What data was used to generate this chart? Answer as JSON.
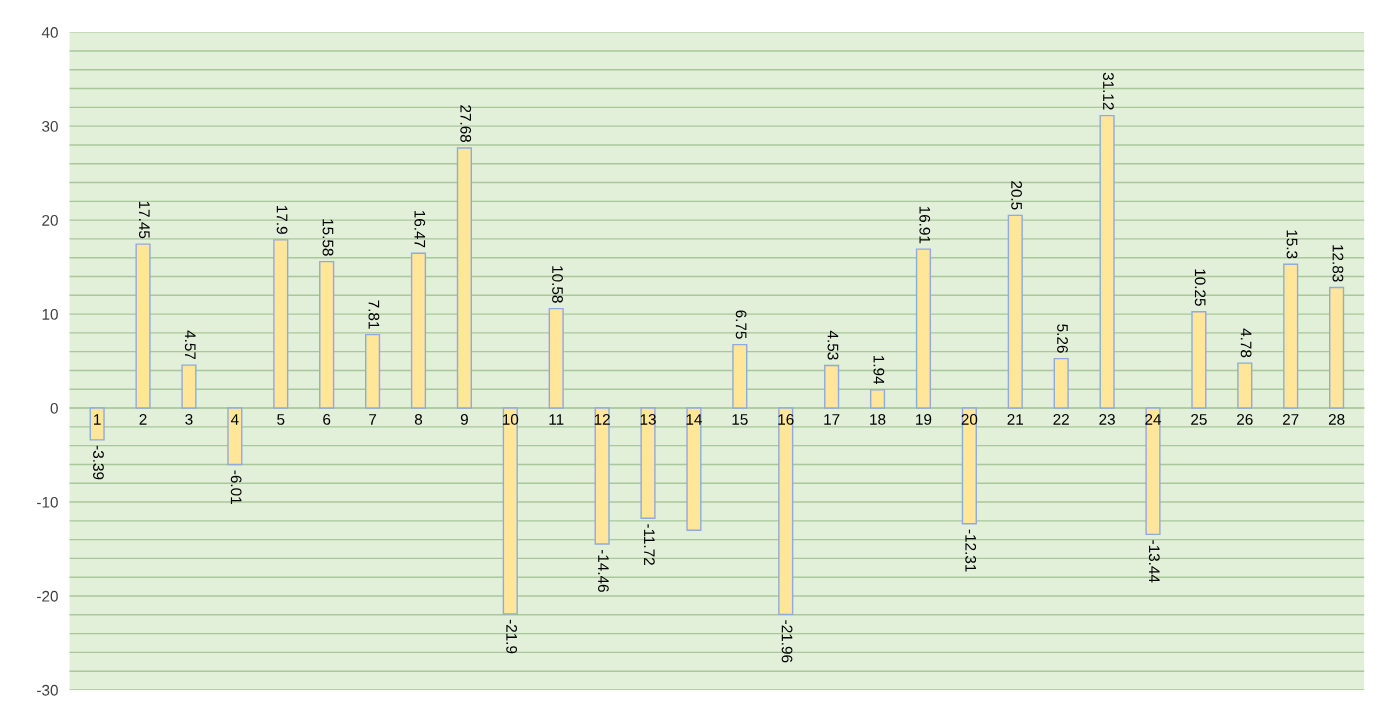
{
  "chart_data": {
    "type": "bar",
    "categories": [
      "1",
      "2",
      "3",
      "4",
      "5",
      "6",
      "7",
      "8",
      "9",
      "10",
      "11",
      "12",
      "13",
      "14",
      "15",
      "16",
      "17",
      "18",
      "19",
      "20",
      "21",
      "22",
      "23",
      "24",
      "25",
      "26",
      "27",
      "28"
    ],
    "values": [
      -3.39,
      17.45,
      4.57,
      -6.01,
      17.9,
      15.58,
      7.81,
      16.47,
      27.68,
      -21.9,
      10.58,
      -14.46,
      -11.72,
      -13.0,
      6.75,
      -21.96,
      4.53,
      1.94,
      16.91,
      -12.31,
      20.5,
      5.26,
      31.12,
      -13.44,
      10.25,
      4.78,
      15.3,
      12.83
    ],
    "value_labels": [
      "-3.39",
      "17.45",
      "4.57",
      "-6.01",
      "17.9",
      "15.58",
      "7.81",
      "16.47",
      "27.68",
      "-21.9",
      "10.58",
      "-14.46",
      "-11.72",
      null,
      "6.75",
      "-21.96",
      "4.53",
      "1.94",
      "16.91",
      "-12.31",
      "20.5",
      "5.26",
      "31.12",
      "-13.44",
      "10.25",
      "4.78",
      "15.3",
      "12.83"
    ],
    "color": "#ffe699",
    "ylim": [
      -30,
      40
    ],
    "yticks": [
      -30,
      {
        "value": -28,
        "label": null
      },
      {
        "value": -26,
        "label": null
      },
      {
        "value": -24,
        "label": null
      },
      {
        "value": -22,
        "label": null
      },
      -20,
      {
        "value": -18,
        "label": null
      },
      {
        "value": -16,
        "label": null
      },
      {
        "value": -14,
        "label": null
      },
      {
        "value": -12,
        "label": null
      },
      -10,
      {
        "value": -8,
        "label": null
      },
      {
        "value": -6,
        "label": null
      },
      {
        "value": -4,
        "label": null
      },
      {
        "value": -2,
        "label": null
      },
      0,
      {
        "value": 2,
        "label": null
      },
      {
        "value": 4,
        "label": null
      },
      {
        "value": 6,
        "label": null
      },
      {
        "value": 8,
        "label": null
      },
      10,
      {
        "value": 12,
        "label": null
      },
      {
        "value": 14,
        "label": null
      },
      {
        "value": 16,
        "label": null
      },
      {
        "value": 18,
        "label": null
      },
      20,
      {
        "value": 22,
        "label": null
      },
      {
        "value": 24,
        "label": null
      },
      {
        "value": 26,
        "label": null
      },
      {
        "value": 28,
        "label": null
      },
      30,
      {
        "value": 32,
        "label": null
      },
      {
        "value": 34,
        "label": null
      },
      {
        "value": 36,
        "label": null
      },
      {
        "value": 38,
        "label": null
      },
      40
    ],
    "grid": "y"
  }
}
